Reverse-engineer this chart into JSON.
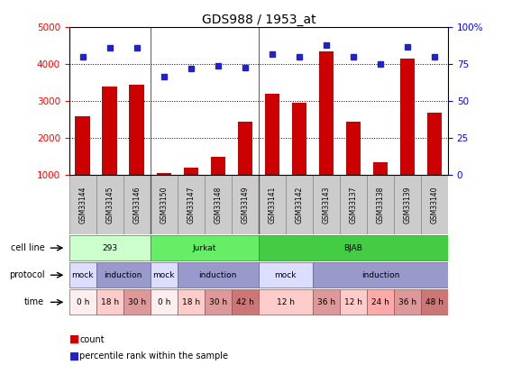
{
  "title": "GDS988 / 1953_at",
  "samples": [
    "GSM33144",
    "GSM33145",
    "GSM33146",
    "GSM33150",
    "GSM33147",
    "GSM33148",
    "GSM33149",
    "GSM33141",
    "GSM33142",
    "GSM33143",
    "GSM33137",
    "GSM33138",
    "GSM33139",
    "GSM33140"
  ],
  "counts": [
    2600,
    3400,
    3450,
    1050,
    1200,
    1500,
    2450,
    3200,
    2950,
    4350,
    2450,
    1350,
    4150,
    2700
  ],
  "percentile": [
    80,
    86,
    86,
    67,
    72,
    74,
    73,
    82,
    80,
    88,
    80,
    75,
    87,
    80
  ],
  "ylim_left": [
    1000,
    5000
  ],
  "ylim_right": [
    0,
    100
  ],
  "yticks_left": [
    1000,
    2000,
    3000,
    4000,
    5000
  ],
  "yticks_right": [
    0,
    25,
    50,
    75,
    100
  ],
  "bar_color": "#cc0000",
  "dot_color": "#2222cc",
  "cell_line_groups": [
    {
      "label": "293",
      "start": 0,
      "end": 3,
      "color": "#ccffcc"
    },
    {
      "label": "Jurkat",
      "start": 3,
      "end": 7,
      "color": "#66ee66"
    },
    {
      "label": "BJAB",
      "start": 7,
      "end": 14,
      "color": "#44cc44"
    }
  ],
  "protocol_groups": [
    {
      "label": "mock",
      "start": 0,
      "end": 1,
      "color": "#ddddff"
    },
    {
      "label": "induction",
      "start": 1,
      "end": 3,
      "color": "#9999cc"
    },
    {
      "label": "mock",
      "start": 3,
      "end": 4,
      "color": "#ddddff"
    },
    {
      "label": "induction",
      "start": 4,
      "end": 7,
      "color": "#9999cc"
    },
    {
      "label": "mock",
      "start": 7,
      "end": 9,
      "color": "#ddddff"
    },
    {
      "label": "induction",
      "start": 9,
      "end": 14,
      "color": "#9999cc"
    }
  ],
  "time_groups": [
    {
      "label": "0 h",
      "start": 0,
      "end": 1,
      "color": "#ffeeee"
    },
    {
      "label": "18 h",
      "start": 1,
      "end": 2,
      "color": "#ffcccc"
    },
    {
      "label": "30 h",
      "start": 2,
      "end": 3,
      "color": "#dd9999"
    },
    {
      "label": "0 h",
      "start": 3,
      "end": 4,
      "color": "#ffeeee"
    },
    {
      "label": "18 h",
      "start": 4,
      "end": 5,
      "color": "#ffcccc"
    },
    {
      "label": "30 h",
      "start": 5,
      "end": 6,
      "color": "#dd9999"
    },
    {
      "label": "42 h",
      "start": 6,
      "end": 7,
      "color": "#cc7777"
    },
    {
      "label": "12 h",
      "start": 7,
      "end": 9,
      "color": "#ffcccc"
    },
    {
      "label": "36 h",
      "start": 9,
      "end": 10,
      "color": "#dd9999"
    },
    {
      "label": "12 h",
      "start": 10,
      "end": 11,
      "color": "#ffcccc"
    },
    {
      "label": "24 h",
      "start": 11,
      "end": 12,
      "color": "#ffaaaa"
    },
    {
      "label": "36 h",
      "start": 12,
      "end": 13,
      "color": "#dd9999"
    },
    {
      "label": "48 h",
      "start": 13,
      "end": 14,
      "color": "#cc7777"
    }
  ],
  "sample_bg": "#cccccc",
  "group_sep_cols": [
    3,
    7
  ]
}
